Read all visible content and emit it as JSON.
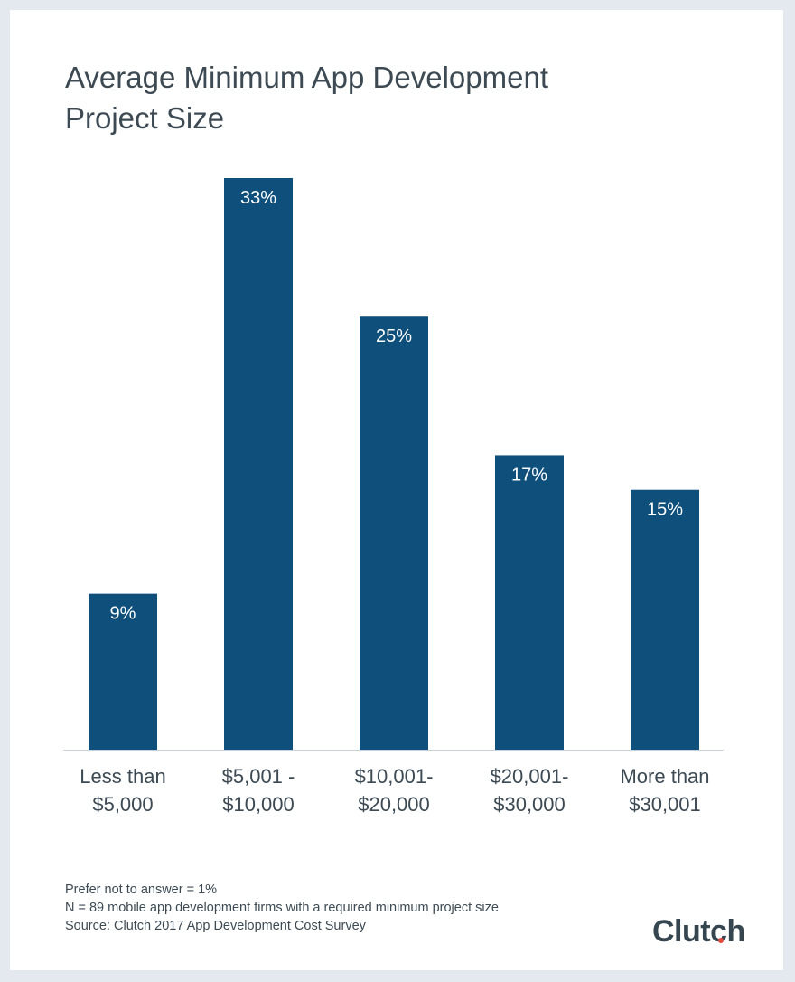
{
  "chart_data": {
    "type": "bar",
    "title": [
      "Average Minimum App Development",
      "Project Size"
    ],
    "categories": [
      [
        "Less than",
        "$5,000"
      ],
      [
        "$5,001 -",
        "$10,000"
      ],
      [
        "$10,001-",
        "$20,000"
      ],
      [
        "$20,001-",
        "$30,000"
      ],
      [
        "More than",
        "$30,001"
      ]
    ],
    "values": [
      9,
      33,
      25,
      17,
      15
    ],
    "value_labels": [
      "9%",
      "33%",
      "25%",
      "17%",
      "15%"
    ],
    "unit": "%",
    "ylim": [
      0,
      33
    ],
    "grid": false,
    "bar_color": "#0e4f7c"
  },
  "footnotes": [
    "Prefer not to answer = 1%",
    "N = 89 mobile app development firms with a required minimum project size",
    "Source: Clutch 2017 App Development Cost Survey"
  ],
  "logo": {
    "text": "Clutch",
    "accent_color": "#e24b3b"
  }
}
